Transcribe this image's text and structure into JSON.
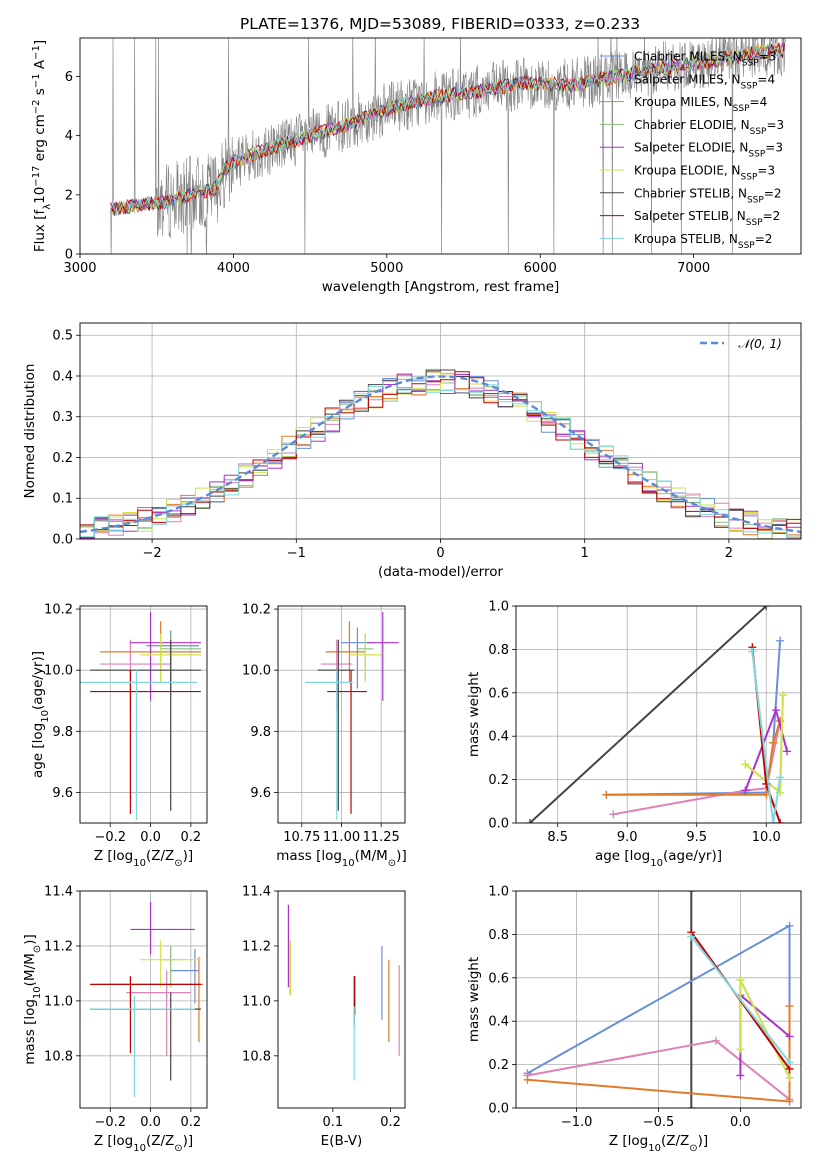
{
  "figure": {
    "title": "PLATE=1376, MJD=53089, FIBERID=0333, z=0.233"
  },
  "colors": {
    "chabrier_miles": "#6a8fd6",
    "salpeter_miles": "#e07fb8",
    "kroupa_miles": "#e07b28",
    "chabrier_elodie": "#8bbf7a",
    "salpeter_elodie": "#aa33cc",
    "kroupa_elodie": "#d2e34a",
    "chabrier_stelib": "#444444",
    "salpeter_stelib": "#c00000",
    "kroupa_stelib": "#7fd8dd",
    "spectrum": "#808080"
  },
  "chart_data": [
    {
      "id": "spectrum",
      "type": "line",
      "xlabel": "wavelength [Angstrom, rest frame]",
      "ylabel": "Flux [f$_\\lambda$10$^{-17}$ erg cm$^{-2}$ s$^{-1}$ A$^{-1}$]",
      "xlim": [
        3000,
        7700
      ],
      "ylim": [
        0,
        7.3
      ],
      "xticks": [
        3000,
        4000,
        5000,
        6000,
        7000
      ],
      "yticks": [
        0,
        2,
        4,
        6
      ],
      "legend_position": "top-right",
      "legend": [
        {
          "label": "Chabrier MILES, N",
          "sub": "SSP",
          "tail": "=3",
          "color": "#6a8fd6"
        },
        {
          "label": "Salpeter MILES, N",
          "sub": "SSP",
          "tail": "=4",
          "color": "#e07fb8"
        },
        {
          "label": "Kroupa MILES, N",
          "sub": "SSP",
          "tail": "=4",
          "color": "#e07b28"
        },
        {
          "label": "Chabrier ELODIE, N",
          "sub": "SSP",
          "tail": "=3",
          "color": "#8bbf7a"
        },
        {
          "label": "Salpeter ELODIE, N",
          "sub": "SSP",
          "tail": "=3",
          "color": "#aa33cc"
        },
        {
          "label": "Kroupa ELODIE, N",
          "sub": "SSP",
          "tail": "=3",
          "color": "#d2e34a"
        },
        {
          "label": "Chabrier STELIB, N",
          "sub": "SSP",
          "tail": "=2",
          "color": "#444444"
        },
        {
          "label": "Salpeter STELIB, N",
          "sub": "SSP",
          "tail": "=2",
          "color": "#c00000"
        },
        {
          "label": "Kroupa STELIB, N",
          "sub": "SSP",
          "tail": "=2",
          "color": "#7fd8dd"
        }
      ],
      "data_range_x": [
        3200,
        7600
      ],
      "continuum": {
        "x": [
          3200,
          3450,
          3550,
          3700,
          3880,
          3950,
          4000,
          4100,
          4300,
          4500,
          4700,
          5000,
          5300,
          5600,
          5900,
          6200,
          6500,
          6800,
          7100,
          7400,
          7600
        ],
        "y": [
          1.5,
          1.7,
          1.75,
          2.0,
          2.2,
          2.9,
          3.1,
          3.3,
          3.7,
          4.0,
          4.3,
          4.9,
          5.3,
          5.5,
          5.8,
          5.7,
          6.0,
          6.3,
          6.5,
          6.8,
          6.9
        ]
      }
    },
    {
      "id": "residuals",
      "type": "histogram",
      "xlabel": "(data-model)/error",
      "ylabel": "Normed distribution",
      "xlim": [
        -2.5,
        2.5
      ],
      "ylim": [
        0,
        0.53
      ],
      "xticks": [
        -2,
        -1,
        0,
        1,
        2
      ],
      "xticklabels": [
        "−2",
        "−1",
        "0",
        "1",
        "2"
      ],
      "yticks": [
        0.0,
        0.1,
        0.2,
        0.3,
        0.4,
        0.5
      ],
      "yticklabels": [
        "0.0",
        "0.1",
        "0.2",
        "0.3",
        "0.4",
        "0.5"
      ],
      "grid": true,
      "legend": {
        "label": "𝒩(0, 1)",
        "color": "#5b8bd6",
        "position": "top-right"
      },
      "bin_width": 0.1
    },
    {
      "id": "age_vs_Z",
      "type": "scatter",
      "xlabel": "Z [log$_{10}$(Z/Z$_\\odot$)]",
      "ylabel": "age  [log$_{10}$(age/yr)]",
      "xlim": [
        -0.35,
        0.28
      ],
      "ylim": [
        9.5,
        10.21
      ],
      "xticks": [
        -0.2,
        0.0,
        0.2
      ],
      "xticklabels": [
        "−0.2",
        "0.0",
        "0.2"
      ],
      "yticks": [
        9.6,
        9.8,
        10.0,
        10.2
      ],
      "yticklabels": [
        "9.6",
        "9.8",
        "10.0",
        "10.2"
      ],
      "grid": true,
      "points": [
        {
          "x": 0.1,
          "y": 10.08,
          "xerr": [
            0.12,
            0.14
          ],
          "yerr": [
            0.15,
            0.05
          ],
          "color": "#6a8fd6"
        },
        {
          "x": -0.1,
          "y": 10.02,
          "xerr": [
            0.15,
            0.2
          ],
          "yerr": [
            0.15,
            0.08
          ],
          "color": "#e07fb8"
        },
        {
          "x": 0.05,
          "y": 10.06,
          "xerr": [
            0.3,
            0.2
          ],
          "yerr": [
            0.1,
            0.1
          ],
          "color": "#e07b28"
        },
        {
          "x": 0.1,
          "y": 10.07,
          "xerr": [
            0.05,
            0.15
          ],
          "yerr": [
            0.1,
            0.05
          ],
          "color": "#8bbf7a"
        },
        {
          "x": 0.0,
          "y": 10.09,
          "xerr": [
            0.1,
            0.25
          ],
          "yerr": [
            0.19,
            0.1
          ],
          "color": "#aa33cc"
        },
        {
          "x": 0.05,
          "y": 10.05,
          "xerr": [
            0.1,
            0.2
          ],
          "yerr": [
            0.09,
            0.07
          ],
          "color": "#d2e34a"
        },
        {
          "x": 0.1,
          "y": 10.0,
          "xerr": [
            0.4,
            0.15
          ],
          "yerr": [
            0.46,
            0.1
          ],
          "color": "#444444"
        },
        {
          "x": -0.1,
          "y": 9.93,
          "xerr": [
            0.2,
            0.35
          ],
          "yerr": [
            0.4,
            0.07
          ],
          "color": "#c00000"
        },
        {
          "x": -0.07,
          "y": 9.96,
          "xerr": [
            0.28,
            0.3
          ],
          "yerr": [
            0.45,
            0.04
          ],
          "color": "#7fd8dd"
        }
      ]
    },
    {
      "id": "age_vs_mass",
      "type": "scatter",
      "xlabel": "mass [log$_{10}$(M/M$_\\odot$)]",
      "xlim": [
        10.6,
        11.4
      ],
      "ylim": [
        9.5,
        10.21
      ],
      "xticks": [
        10.75,
        11.0,
        11.25
      ],
      "xticklabels": [
        "10.75",
        "11.00",
        "11.25"
      ],
      "yticks": [
        9.6,
        9.8,
        10.0,
        10.2
      ],
      "yticklabels": [
        "9.6",
        "9.8",
        "10.0",
        "10.2"
      ],
      "grid": true,
      "points": [
        {
          "x": 11.1,
          "y": 10.09,
          "xerr": [
            0.1,
            0.1
          ],
          "yerr": [
            0.15,
            0.05
          ],
          "color": "#6a8fd6"
        },
        {
          "x": 10.97,
          "y": 10.02,
          "xerr": [
            0.1,
            0.1
          ],
          "yerr": [
            0.15,
            0.08
          ],
          "color": "#e07fb8"
        },
        {
          "x": 11.05,
          "y": 10.06,
          "xerr": [
            0.15,
            0.1
          ],
          "yerr": [
            0.1,
            0.1
          ],
          "color": "#e07b28"
        },
        {
          "x": 11.15,
          "y": 10.07,
          "xerr": [
            0.05,
            0.05
          ],
          "yerr": [
            0.1,
            0.05
          ],
          "color": "#8bbf7a"
        },
        {
          "x": 11.26,
          "y": 10.09,
          "xerr": [
            0.1,
            0.1
          ],
          "yerr": [
            0.19,
            0.1
          ],
          "color": "#aa33cc"
        },
        {
          "x": 11.15,
          "y": 10.05,
          "xerr": [
            0.1,
            0.1
          ],
          "yerr": [
            0.09,
            0.07
          ],
          "color": "#d2e34a"
        },
        {
          "x": 10.98,
          "y": 10.0,
          "xerr": [
            0.13,
            0.1
          ],
          "yerr": [
            0.46,
            0.1
          ],
          "color": "#444444"
        },
        {
          "x": 11.06,
          "y": 9.93,
          "xerr": [
            0.15,
            0.1
          ],
          "yerr": [
            0.4,
            0.07
          ],
          "color": "#c00000"
        },
        {
          "x": 10.97,
          "y": 9.96,
          "xerr": [
            0.2,
            0.1
          ],
          "yerr": [
            0.45,
            0.04
          ],
          "color": "#7fd8dd"
        }
      ]
    },
    {
      "id": "weight_vs_age",
      "type": "line",
      "xlabel": "age  [log$_{10}$(age/yr)]",
      "ylabel": "mass weight",
      "xlim": [
        8.2,
        10.25
      ],
      "ylim": [
        0,
        1.0
      ],
      "xticks": [
        8.5,
        9.0,
        9.5,
        10.0
      ],
      "xticklabels": [
        "8.5",
        "9.0",
        "9.5",
        "10.0"
      ],
      "yticks": [
        0.0,
        0.2,
        0.4,
        0.6,
        0.8,
        1.0
      ],
      "yticklabels": [
        "0.0",
        "0.2",
        "0.4",
        "0.6",
        "0.8",
        "1.0"
      ],
      "grid": true,
      "series": [
        {
          "color": "#444444",
          "x": [
            8.3,
            10.0
          ],
          "y": [
            0.0,
            1.0
          ]
        },
        {
          "color": "#6a8fd6",
          "x": [
            8.85,
            10.0,
            10.05,
            10.1
          ],
          "y": [
            0.13,
            0.14,
            0.37,
            0.84
          ]
        },
        {
          "color": "#e07fb8",
          "x": [
            8.9,
            9.85,
            10.0,
            10.1
          ],
          "y": [
            0.04,
            0.15,
            0.16,
            0.47
          ]
        },
        {
          "color": "#e07b28",
          "x": [
            8.85,
            10.0,
            10.05,
            10.1
          ],
          "y": [
            0.13,
            0.13,
            0.37,
            0.47
          ]
        },
        {
          "color": "#8bbf7a",
          "x": [
            9.85,
            10.1,
            10.12
          ],
          "y": [
            0.27,
            0.14,
            0.59
          ]
        },
        {
          "color": "#aa33cc",
          "x": [
            9.85,
            10.07,
            10.15
          ],
          "y": [
            0.15,
            0.52,
            0.33
          ]
        },
        {
          "color": "#d2e34a",
          "x": [
            9.85,
            10.1,
            10.12
          ],
          "y": [
            0.27,
            0.14,
            0.59
          ]
        },
        {
          "color": "#c00000",
          "x": [
            9.9,
            10.0,
            10.1
          ],
          "y": [
            0.81,
            0.18,
            0.0
          ]
        },
        {
          "color": "#7fd8dd",
          "x": [
            9.9,
            10.05,
            10.1
          ],
          "y": [
            0.79,
            0.0,
            0.21
          ]
        }
      ]
    },
    {
      "id": "mass_vs_Z",
      "type": "scatter",
      "xlabel": "Z [log$_{10}$(Z/Z$_\\odot$)]",
      "ylabel": "mass [log$_{10}$(M/M$_\\odot$)]",
      "xlim": [
        -0.35,
        0.28
      ],
      "ylim": [
        10.61,
        11.4
      ],
      "xticks": [
        -0.2,
        0.0,
        0.2
      ],
      "xticklabels": [
        "−0.2",
        "0.0",
        "0.2"
      ],
      "yticks": [
        10.8,
        11.0,
        11.2,
        11.4
      ],
      "yticklabels": [
        "10.8",
        "11.0",
        "11.2",
        "11.4"
      ],
      "grid": true,
      "points": [
        {
          "x": 0.22,
          "y": 11.11,
          "xerr": [
            0.12,
            0.02
          ],
          "yerr": [
            0.12,
            0.08
          ],
          "color": "#6a8fd6"
        },
        {
          "x": 0.08,
          "y": 11.03,
          "xerr": [
            0.2,
            0.12
          ],
          "yerr": [
            0.23,
            0.08
          ],
          "color": "#e07fb8"
        },
        {
          "x": 0.24,
          "y": 11.06,
          "xerr": [
            0.5,
            0.02
          ],
          "yerr": [
            0.21,
            0.1
          ],
          "color": "#e07b28"
        },
        {
          "x": 0.1,
          "y": 11.15,
          "xerr": [
            0.05,
            0.05
          ],
          "yerr": [
            0.1,
            0.05
          ],
          "color": "#8bbf7a"
        },
        {
          "x": 0.0,
          "y": 11.26,
          "xerr": [
            0.1,
            0.22
          ],
          "yerr": [
            0.09,
            0.1
          ],
          "color": "#aa33cc"
        },
        {
          "x": 0.05,
          "y": 11.15,
          "xerr": [
            0.1,
            0.2
          ],
          "yerr": [
            0.1,
            0.07
          ],
          "color": "#d2e34a"
        },
        {
          "x": 0.1,
          "y": 10.97,
          "xerr": [
            0.4,
            0.15
          ],
          "yerr": [
            0.26,
            0.06
          ],
          "color": "#444444"
        },
        {
          "x": -0.1,
          "y": 11.06,
          "xerr": [
            0.2,
            0.35
          ],
          "yerr": [
            0.25,
            0.03
          ],
          "color": "#c00000"
        },
        {
          "x": -0.08,
          "y": 10.97,
          "xerr": [
            0.22,
            0.3
          ],
          "yerr": [
            0.32,
            0.05
          ],
          "color": "#7fd8dd"
        }
      ]
    },
    {
      "id": "mass_vs_ebv",
      "type": "scatter",
      "xlabel": "E(B-V)",
      "xlim": [
        0.005,
        0.225
      ],
      "ylim": [
        10.61,
        11.4
      ],
      "xticks": [
        0.1,
        0.2
      ],
      "xticklabels": [
        "0.1",
        "0.2"
      ],
      "yticks": [
        10.8,
        11.0,
        11.2,
        11.4
      ],
      "yticklabels": [
        "10.8",
        "11.0",
        "11.2",
        "11.4"
      ],
      "grid": false,
      "points": [
        {
          "x": 0.185,
          "y": 11.06,
          "yerr": [
            0.13,
            0.14
          ],
          "color": "#6a8fd6"
        },
        {
          "x": 0.215,
          "y": 10.96,
          "yerr": [
            0.16,
            0.17
          ],
          "color": "#e07fb8"
        },
        {
          "x": 0.197,
          "y": 11.0,
          "yerr": [
            0.15,
            0.15
          ],
          "color": "#e07b28"
        },
        {
          "x": 0.026,
          "y": 11.12,
          "yerr": [
            0.1,
            0.1
          ],
          "color": "#8bbf7a"
        },
        {
          "x": 0.023,
          "y": 11.2,
          "yerr": [
            0.15,
            0.15
          ],
          "color": "#aa33cc"
        },
        {
          "x": 0.027,
          "y": 11.12,
          "yerr": [
            0.1,
            0.1
          ],
          "color": "#d2e34a"
        },
        {
          "x": 0.137,
          "y": 10.99,
          "yerr": [
            0.08,
            0.1
          ],
          "color": "#444444"
        },
        {
          "x": 0.138,
          "y": 11.0,
          "yerr": [
            0.05,
            0.09
          ],
          "color": "#c00000"
        },
        {
          "x": 0.137,
          "y": 10.86,
          "yerr": [
            0.15,
            0.12
          ],
          "color": "#7fd8dd"
        }
      ]
    },
    {
      "id": "weight_vs_Z",
      "type": "line",
      "xlabel": "Z [log$_{10}$(Z/Z$_\\odot$)]",
      "ylabel": "mass weight",
      "xlim": [
        -1.37,
        0.37
      ],
      "ylim": [
        0,
        1.0
      ],
      "xticks": [
        -1.0,
        -0.5,
        0.0
      ],
      "xticklabels": [
        "−1.0",
        "−0.5",
        "0.0"
      ],
      "yticks": [
        0.0,
        0.2,
        0.4,
        0.6,
        0.8,
        1.0
      ],
      "yticklabels": [
        "0.0",
        "0.2",
        "0.4",
        "0.6",
        "0.8",
        "1.0"
      ],
      "grid": true,
      "series": [
        {
          "color": "#444444",
          "x": [
            -0.3,
            -0.3
          ],
          "y": [
            0.0,
            1.0
          ]
        },
        {
          "color": "#6a8fd6",
          "x": [
            -1.3,
            0.3,
            0.3
          ],
          "y": [
            0.16,
            0.84,
            0.21
          ]
        },
        {
          "color": "#e07fb8",
          "x": [
            -1.3,
            -0.15,
            0.3,
            0.3
          ],
          "y": [
            0.15,
            0.31,
            0.04,
            0.47
          ]
        },
        {
          "color": "#e07b28",
          "x": [
            -1.3,
            0.3,
            0.3
          ],
          "y": [
            0.13,
            0.03,
            0.47
          ]
        },
        {
          "color": "#8bbf7a",
          "x": [
            0.0,
            0.0,
            0.3
          ],
          "y": [
            0.27,
            0.59,
            0.14
          ]
        },
        {
          "color": "#aa33cc",
          "x": [
            0.0,
            0.0,
            0.3
          ],
          "y": [
            0.15,
            0.52,
            0.33
          ]
        },
        {
          "color": "#d2e34a",
          "x": [
            0.0,
            0.0,
            0.3
          ],
          "y": [
            0.27,
            0.59,
            0.14
          ]
        },
        {
          "color": "#c00000",
          "x": [
            -0.3,
            0.3
          ],
          "y": [
            0.81,
            0.18
          ]
        },
        {
          "color": "#7fd8dd",
          "x": [
            -0.3,
            0.3
          ],
          "y": [
            0.79,
            0.21
          ]
        }
      ]
    }
  ]
}
